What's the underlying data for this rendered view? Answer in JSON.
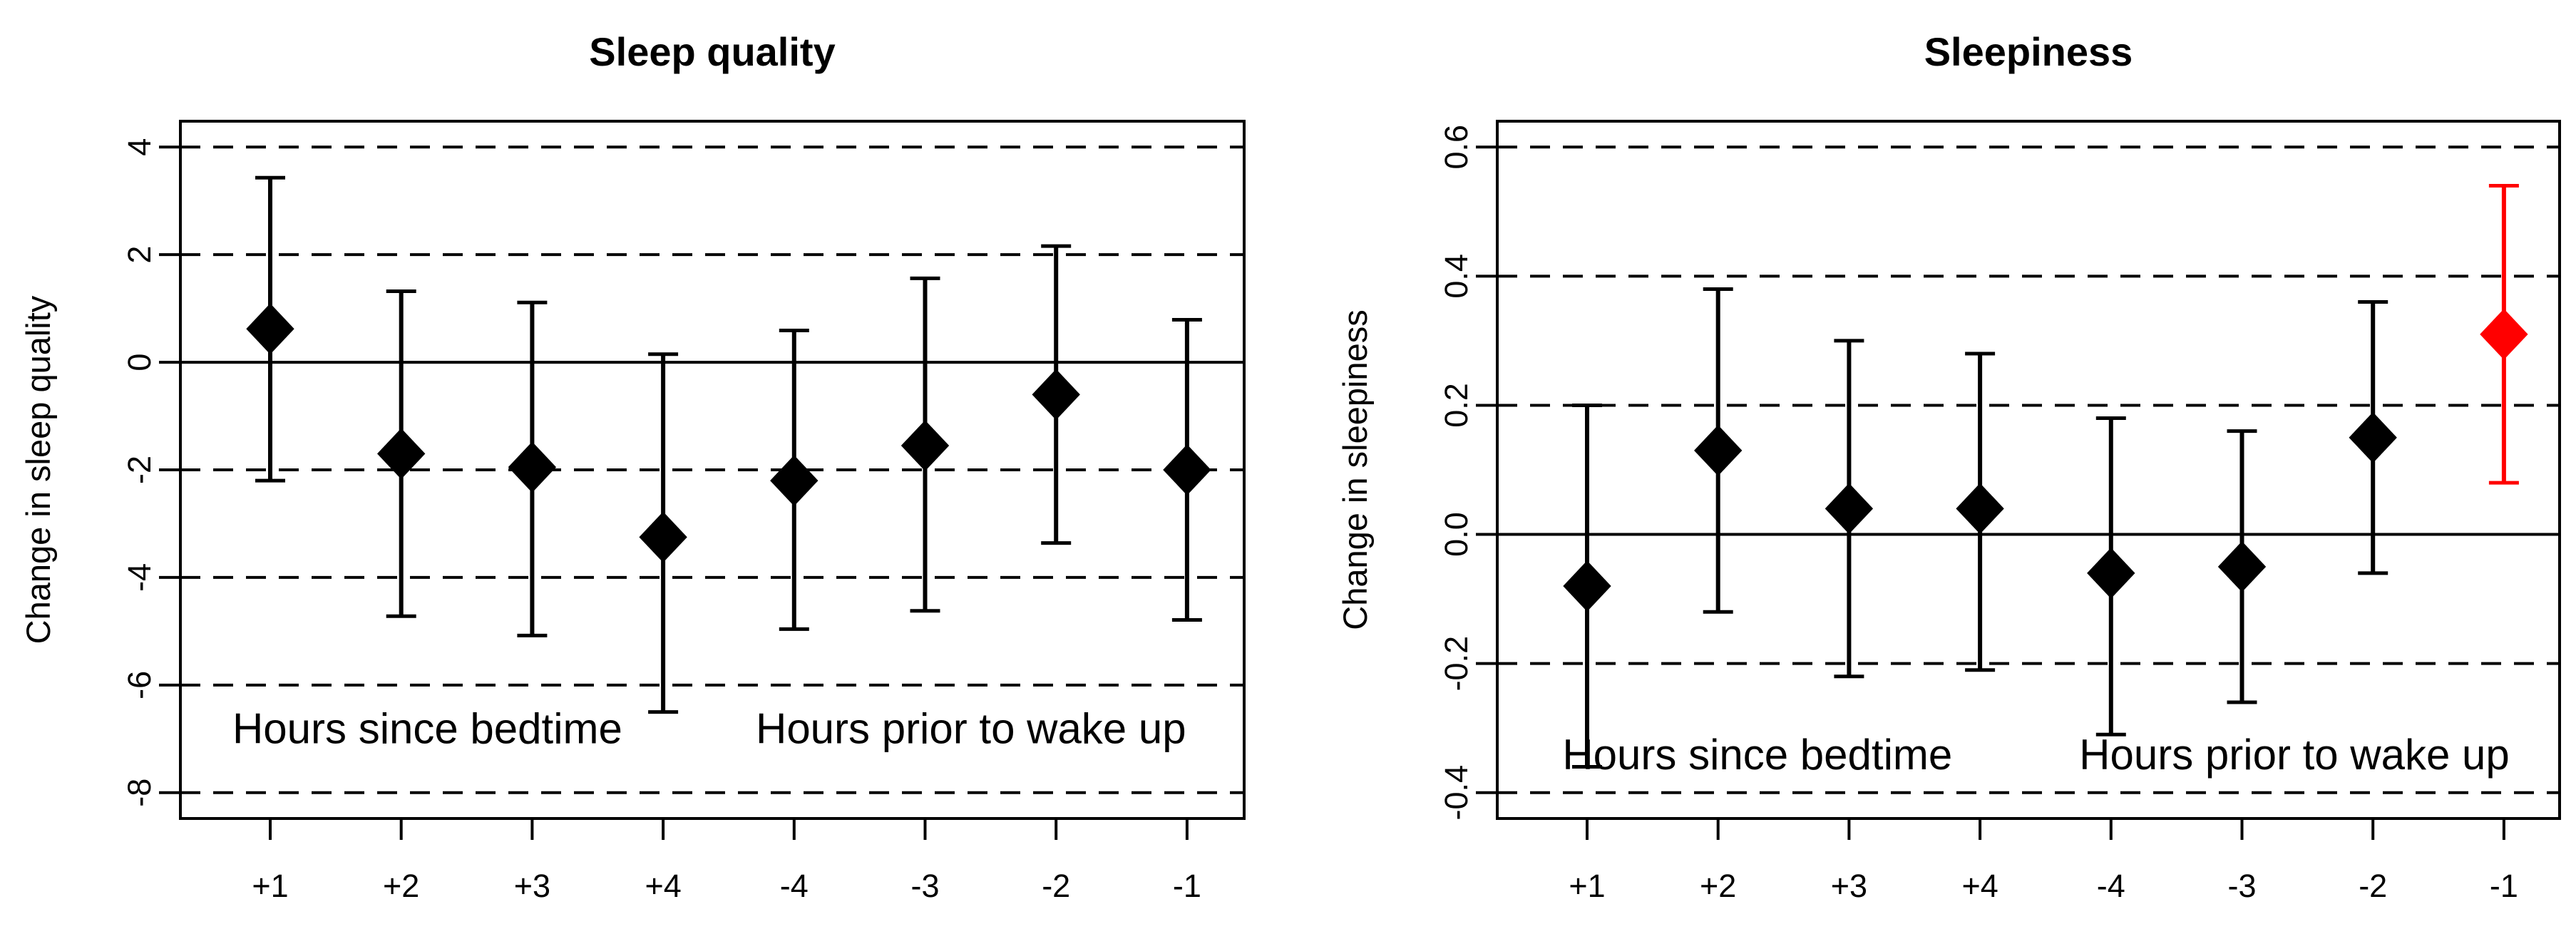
{
  "figure": {
    "background": "#ffffff",
    "foreground": "#000000",
    "highlight_color": "#ff0000"
  },
  "chart_data": [
    {
      "type": "scatter",
      "subtype": "point-estimates-with-error-bars",
      "title": "Sleep quality",
      "xlabel": "",
      "ylabel": "Change in sleep quality",
      "categories": [
        "+1",
        "+2",
        "+3",
        "+4",
        "-4",
        "-3",
        "-2",
        "-1"
      ],
      "values": [
        0.62,
        -1.7,
        -1.95,
        -3.25,
        -2.2,
        -1.55,
        -0.6,
        -2.0
      ],
      "ci_low": [
        -2.2,
        -4.72,
        -5.08,
        -6.5,
        -4.96,
        -4.62,
        -3.36,
        -4.79
      ],
      "ci_high": [
        3.43,
        1.32,
        1.11,
        0.15,
        0.59,
        1.56,
        2.16,
        0.79
      ],
      "point_colors": [
        "#000000",
        "#000000",
        "#000000",
        "#000000",
        "#000000",
        "#000000",
        "#000000",
        "#000000"
      ],
      "yticks": [
        4,
        2,
        0,
        -2,
        -4,
        -6,
        -8
      ],
      "ytick_labels": [
        "4",
        "2",
        "0",
        "-2",
        "-4",
        "-6",
        "-8"
      ],
      "gridlines_dashed": [
        4,
        2,
        -2,
        -4,
        -6,
        -8
      ],
      "zero_line": 0,
      "ylim": [
        -8,
        4
      ],
      "axis_range": [
        -8.48,
        4.48
      ],
      "grid": "dashed-horizontal",
      "legend": "none",
      "annotations": [
        {
          "text": "Hours since bedtime",
          "x": 2.2,
          "y": -7.08
        },
        {
          "text": "Hours prior to wake up",
          "x": 6.35,
          "y": -7.08
        }
      ]
    },
    {
      "type": "scatter",
      "subtype": "point-estimates-with-error-bars",
      "title": "Sleepiness",
      "xlabel": "",
      "ylabel": "Change in sleepiness",
      "categories": [
        "+1",
        "+2",
        "+3",
        "+4",
        "-4",
        "-3",
        "-2",
        "-1"
      ],
      "values": [
        -0.08,
        0.13,
        0.04,
        0.04,
        -0.06,
        -0.05,
        0.15,
        0.31
      ],
      "ci_low": [
        -0.36,
        -0.12,
        -0.22,
        -0.21,
        -0.31,
        -0.26,
        -0.06,
        0.08
      ],
      "ci_high": [
        0.2,
        0.38,
        0.3,
        0.28,
        0.18,
        0.16,
        0.36,
        0.54
      ],
      "point_colors": [
        "#000000",
        "#000000",
        "#000000",
        "#000000",
        "#000000",
        "#000000",
        "#000000",
        "#ff0000"
      ],
      "yticks": [
        0.6,
        0.4,
        0.2,
        0.0,
        -0.2,
        -0.4
      ],
      "ytick_labels": [
        "0.6",
        "0.4",
        "0.2",
        "0.0",
        "-0.2",
        "-0.4"
      ],
      "gridlines_dashed": [
        0.6,
        0.4,
        0.2,
        -0.2,
        -0.4
      ],
      "zero_line": 0,
      "ylim": [
        -0.4,
        0.6
      ],
      "axis_range": [
        -0.44,
        0.64
      ],
      "grid": "dashed-horizontal",
      "legend": "none",
      "annotations": [
        {
          "text": "Hours since bedtime",
          "x": 2.3,
          "y": -0.364
        },
        {
          "text": "Hours prior to wake up",
          "x": 6.4,
          "y": -0.364
        }
      ]
    }
  ]
}
